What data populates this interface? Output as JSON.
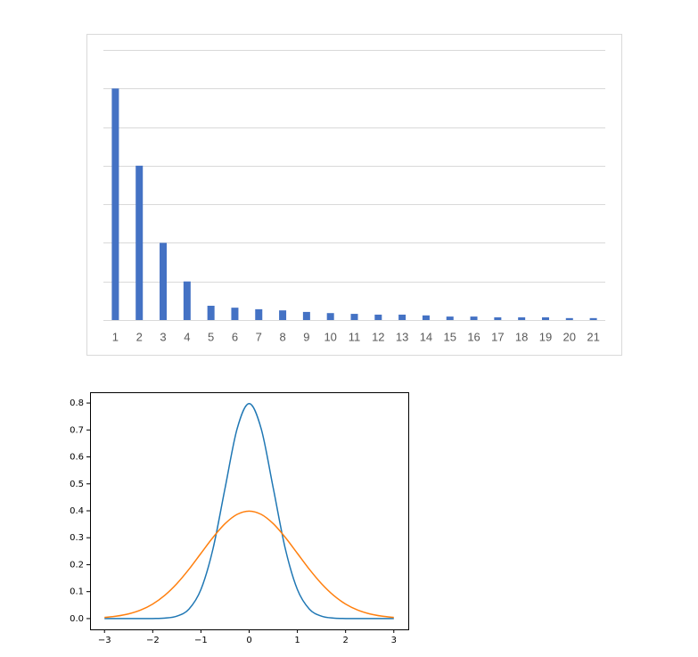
{
  "chart_data": [
    {
      "type": "bar",
      "categories": [
        "1",
        "2",
        "3",
        "4",
        "5",
        "6",
        "7",
        "8",
        "9",
        "10",
        "11",
        "12",
        "13",
        "14",
        "15",
        "16",
        "17",
        "18",
        "19",
        "20",
        "21"
      ],
      "values": [
        6,
        4,
        2,
        1,
        0.37,
        0.32,
        0.28,
        0.25,
        0.21,
        0.18,
        0.16,
        0.14,
        0.14,
        0.12,
        0.09,
        0.09,
        0.07,
        0.07,
        0.07,
        0.05,
        0.05
      ],
      "color": "#4472c4",
      "ylim": [
        0,
        7
      ],
      "yticks": [
        0,
        1,
        2,
        3,
        4,
        5,
        6,
        7
      ],
      "ytick_labels": false,
      "grid": true
    },
    {
      "type": "line",
      "x": [
        -3,
        -2.75,
        -2.5,
        -2.25,
        -2,
        -1.75,
        -1.5,
        -1.25,
        -1,
        -0.75,
        -0.5,
        -0.25,
        0,
        0.25,
        0.5,
        0.75,
        1,
        1.25,
        1.5,
        1.75,
        2,
        2.25,
        2.5,
        2.75,
        3
      ],
      "series": [
        {
          "color": "#1f77b4",
          "values": [
            0,
            0,
            0,
            3e-05,
            0.0003,
            0.0017,
            0.0089,
            0.035,
            0.108,
            0.259,
            0.4839,
            0.7041,
            0.7979,
            0.7041,
            0.4839,
            0.259,
            0.108,
            0.035,
            0.0089,
            0.0017,
            0.0003,
            3e-05,
            0,
            0,
            0
          ]
        },
        {
          "color": "#ff7f0e",
          "values": [
            0.0044,
            0.0091,
            0.0175,
            0.0317,
            0.054,
            0.0863,
            0.1295,
            0.1826,
            0.242,
            0.3011,
            0.3521,
            0.3867,
            0.3989,
            0.3867,
            0.3521,
            0.3011,
            0.242,
            0.1826,
            0.1295,
            0.0863,
            0.054,
            0.0317,
            0.0175,
            0.0091,
            0.0044
          ]
        }
      ],
      "xlim": [
        -3.3,
        3.3
      ],
      "xticks": [
        {
          "value": -3,
          "label": "−3"
        },
        {
          "value": -2,
          "label": "−2"
        },
        {
          "value": -1,
          "label": "−1"
        },
        0,
        1,
        2,
        3
      ],
      "ylim": [
        -0.04,
        0.84
      ],
      "yticks": [
        {
          "value": 0,
          "label": "0.0"
        },
        0.1,
        0.2,
        0.3,
        0.4,
        0.5,
        0.6,
        0.7,
        0.8
      ]
    }
  ]
}
